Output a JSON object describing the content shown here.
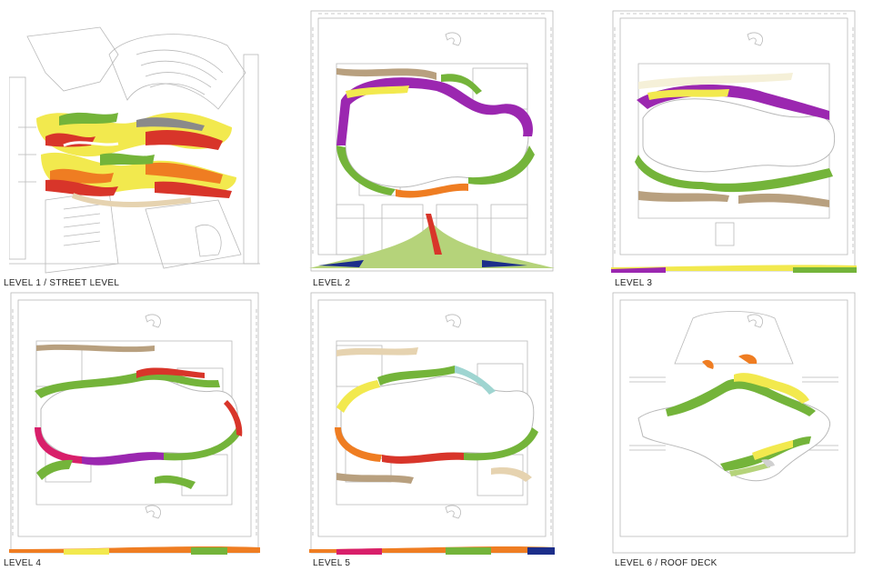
{
  "labels": {
    "level1": "LEVEL 1 / STREET LEVEL",
    "level2": "LEVEL 2",
    "level3": "LEVEL 3",
    "level4": "LEVEL 4",
    "level5": "LEVEL 5",
    "level6": "LEVEL 6 / ROOF DECK"
  },
  "colors": {
    "line": "#b9b9b9",
    "wall": "#9a9a9a",
    "purple": "#9b27b0",
    "green": "#74b43a",
    "light_green": "#b5d37a",
    "yellow": "#f2e94e",
    "orange": "#ef7d22",
    "red": "#d8352a",
    "magenta": "#d81f6a",
    "beige": "#e6d3b0",
    "tan": "#b8a07f",
    "grey": "#8a8a8a",
    "navy": "#1c2e8a",
    "cream": "#f5f0d8"
  }
}
